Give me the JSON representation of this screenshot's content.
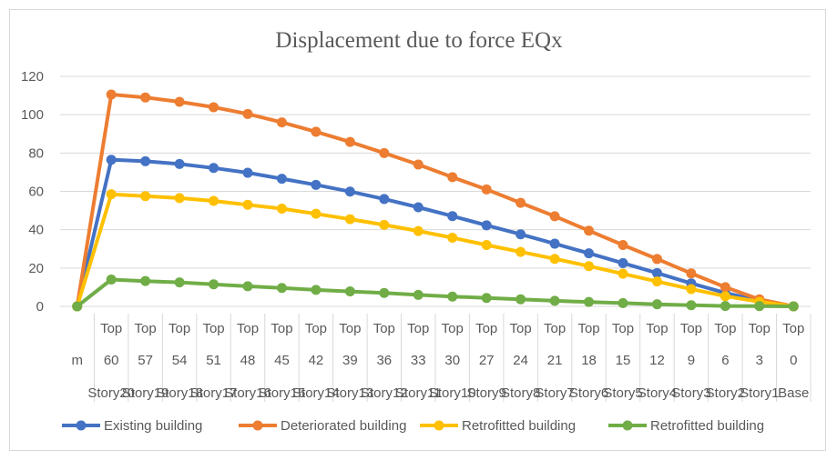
{
  "chart_data": {
    "type": "line",
    "title": "Displacement due to force EQx",
    "xlabel": "",
    "ylabel": "",
    "ylim": [
      0,
      120
    ],
    "yticks": [
      "0",
      "20",
      "40",
      "60",
      "80",
      "100",
      "120"
    ],
    "grid": true,
    "legend_position": "bottom",
    "category_levels": {
      "top": [
        "",
        "Top",
        "Top",
        "Top",
        "Top",
        "Top",
        "Top",
        "Top",
        "Top",
        "Top",
        "Top",
        "Top",
        "Top",
        "Top",
        "Top",
        "Top",
        "Top",
        "Top",
        "Top",
        "Top",
        "Top",
        "Top"
      ],
      "mid": [
        "m",
        "60",
        "57",
        "54",
        "51",
        "48",
        "45",
        "42",
        "39",
        "36",
        "33",
        "30",
        "27",
        "24",
        "21",
        "18",
        "15",
        "12",
        "9",
        "6",
        "3",
        "0"
      ],
      "bottom": [
        "",
        "Story20",
        "Story19",
        "Story18",
        "Story17",
        "Story16",
        "Story15",
        "Story14",
        "Story13",
        "Story12",
        "Story11",
        "Story10",
        "Story9",
        "Story8",
        "Story7",
        "Story6",
        "Story5",
        "Story4",
        "Story3",
        "Story2",
        "Story1",
        "Base"
      ]
    },
    "series": [
      {
        "name": "Existing building",
        "color": "#4472c4",
        "values": [
          0,
          76.5,
          75.7,
          74.3,
          72.2,
          69.7,
          66.6,
          63.4,
          59.9,
          56.0,
          51.7,
          47.1,
          42.3,
          37.6,
          32.7,
          27.7,
          22.6,
          17.4,
          12.0,
          7.0,
          3.0,
          0
        ]
      },
      {
        "name": "Deteriorated building",
        "color": "#ed7d31",
        "values": [
          0,
          110.5,
          109.0,
          106.7,
          103.9,
          100.4,
          96.0,
          91.1,
          85.8,
          80.0,
          74.0,
          67.4,
          61.0,
          54.0,
          47.0,
          39.5,
          32.0,
          24.7,
          17.2,
          10.0,
          3.7,
          0
        ]
      },
      {
        "name": "Retrofitted building",
        "color": "#ffc000",
        "values": [
          0,
          58.5,
          57.5,
          56.5,
          55.0,
          53.0,
          51.0,
          48.3,
          45.5,
          42.5,
          39.3,
          35.8,
          32.0,
          28.4,
          24.8,
          21.0,
          17.0,
          13.0,
          9.0,
          5.3,
          2.4,
          0
        ]
      },
      {
        "name": "Retrofitted building",
        "color": "#70ad47",
        "values": [
          0,
          14.0,
          13.2,
          12.5,
          11.5,
          10.5,
          9.6,
          8.6,
          7.8,
          7.0,
          6.0,
          5.1,
          4.4,
          3.7,
          2.9,
          2.3,
          1.7,
          1.1,
          0.6,
          0.2,
          0.1,
          0
        ]
      }
    ]
  }
}
